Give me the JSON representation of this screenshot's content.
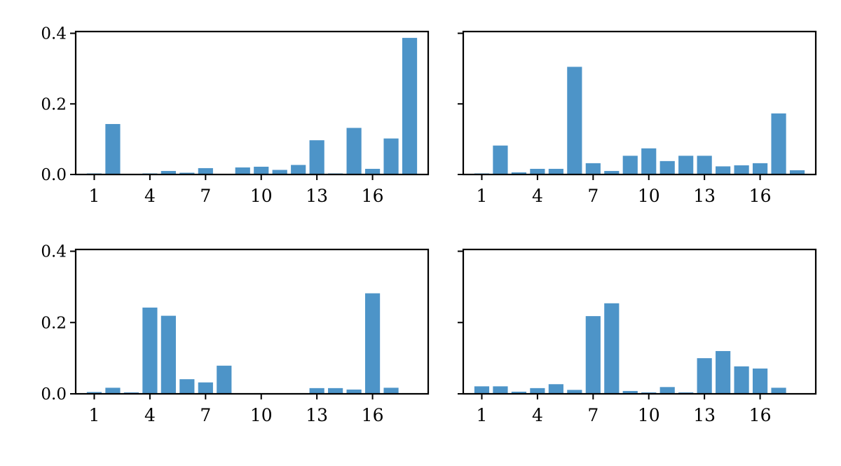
{
  "bar_color": "#4d94c8",
  "axis_color": "#000000",
  "chart_data": [
    {
      "type": "bar",
      "position": "top-left",
      "categories": [
        1,
        2,
        3,
        4,
        5,
        6,
        7,
        8,
        9,
        10,
        11,
        12,
        13,
        14,
        15,
        16,
        17,
        18
      ],
      "values": [
        0.003,
        0.143,
        0.001,
        0.003,
        0.01,
        0.005,
        0.018,
        0.001,
        0.02,
        0.022,
        0.013,
        0.027,
        0.097,
        0.003,
        0.132,
        0.016,
        0.102,
        0.387
      ],
      "xticks": [
        1,
        4,
        7,
        10,
        13,
        16
      ],
      "yticks": [
        0.0,
        0.2,
        0.4
      ],
      "ytick_labels": [
        "0.0",
        "0.2",
        "0.4"
      ],
      "ylim": [
        0,
        0.405
      ],
      "xlim": [
        0,
        19
      ],
      "show_ytick_labels": true
    },
    {
      "type": "bar",
      "position": "top-right",
      "categories": [
        1,
        2,
        3,
        4,
        5,
        6,
        7,
        8,
        9,
        10,
        11,
        12,
        13,
        14,
        15,
        16,
        17,
        18
      ],
      "values": [
        0.003,
        0.082,
        0.006,
        0.016,
        0.016,
        0.305,
        0.032,
        0.01,
        0.053,
        0.074,
        0.038,
        0.053,
        0.053,
        0.023,
        0.026,
        0.032,
        0.173,
        0.012
      ],
      "xticks": [
        1,
        4,
        7,
        10,
        13,
        16
      ],
      "yticks": [
        0.0,
        0.2,
        0.4
      ],
      "ytick_labels": [
        "0.0",
        "0.2",
        "0.4"
      ],
      "ylim": [
        0,
        0.405
      ],
      "xlim": [
        0,
        19
      ],
      "show_ytick_labels": false
    },
    {
      "type": "bar",
      "position": "bottom-left",
      "categories": [
        1,
        2,
        3,
        4,
        5,
        6,
        7,
        8,
        9,
        10,
        11,
        12,
        13,
        14,
        15,
        16,
        17,
        18
      ],
      "values": [
        0.005,
        0.017,
        0.004,
        0.242,
        0.219,
        0.041,
        0.032,
        0.079,
        0.002,
        0.002,
        0.001,
        0.002,
        0.016,
        0.016,
        0.012,
        0.282,
        0.017,
        0.002
      ],
      "xticks": [
        1,
        4,
        7,
        10,
        13,
        16
      ],
      "yticks": [
        0.0,
        0.2,
        0.4
      ],
      "ytick_labels": [
        "0.0",
        "0.2",
        "0.4"
      ],
      "ylim": [
        0,
        0.405
      ],
      "xlim": [
        0,
        19
      ],
      "show_ytick_labels": true
    },
    {
      "type": "bar",
      "position": "bottom-right",
      "categories": [
        1,
        2,
        3,
        4,
        5,
        6,
        7,
        8,
        9,
        10,
        11,
        12,
        13,
        14,
        15,
        16,
        17,
        18
      ],
      "values": [
        0.021,
        0.021,
        0.006,
        0.016,
        0.027,
        0.011,
        0.218,
        0.254,
        0.008,
        0.004,
        0.019,
        0.004,
        0.1,
        0.12,
        0.077,
        0.071,
        0.017,
        0.0
      ],
      "xticks": [
        1,
        4,
        7,
        10,
        13,
        16
      ],
      "yticks": [
        0.0,
        0.2,
        0.4
      ],
      "ytick_labels": [
        "0.0",
        "0.2",
        "0.4"
      ],
      "ylim": [
        0,
        0.405
      ],
      "xlim": [
        0,
        19
      ],
      "show_ytick_labels": false
    }
  ]
}
